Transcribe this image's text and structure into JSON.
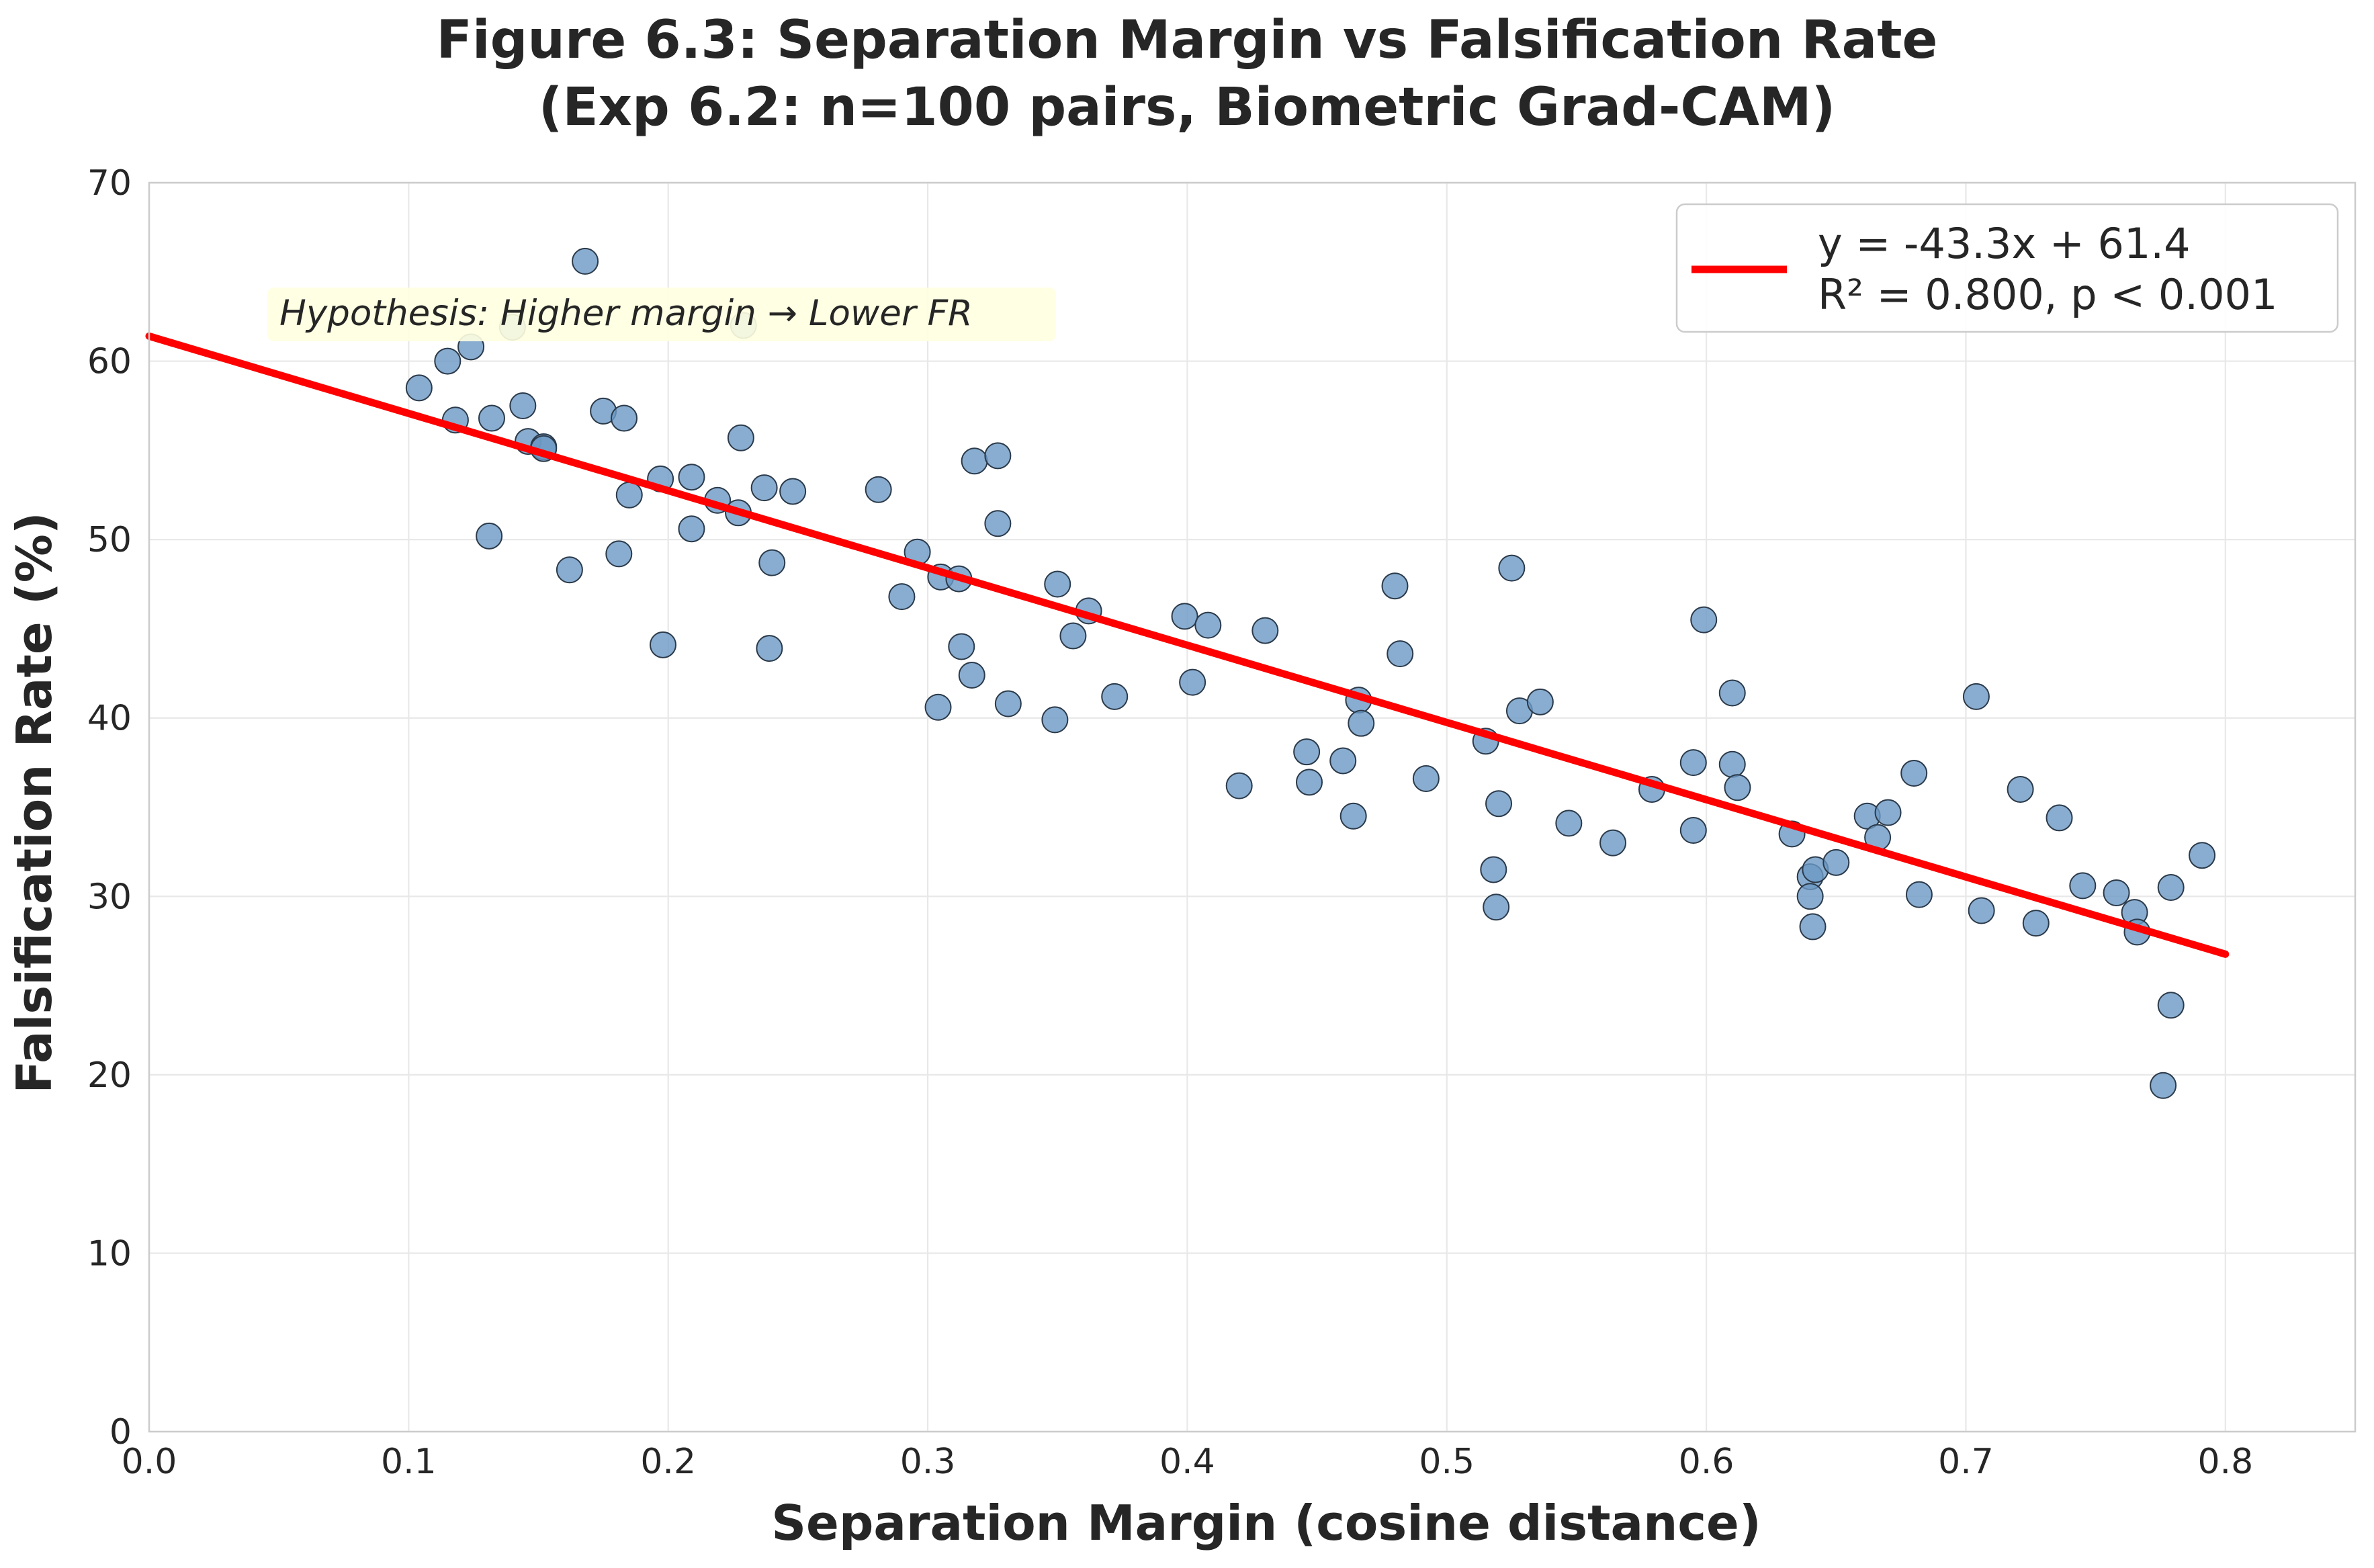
{
  "chart_data": {
    "type": "scatter",
    "title": "Figure 6.3: Separation Margin vs Falsification Rate",
    "subtitle": "(Exp 6.2: n=100 pairs, Biometric Grad-CAM)",
    "xlabel": "Separation Margin (cosine distance)",
    "ylabel": "Falsification Rate (%)",
    "xlim": [
      0.0,
      0.85
    ],
    "ylim": [
      0,
      70
    ],
    "xticks": [
      "0.0",
      "0.1",
      "0.2",
      "0.3",
      "0.4",
      "0.5",
      "0.6",
      "0.7",
      "0.8"
    ],
    "yticks": [
      "0",
      "10",
      "20",
      "30",
      "40",
      "50",
      "60",
      "70"
    ],
    "grid": true,
    "legend_position": "top-right",
    "annotation": "Hypothesis: Higher margin → Lower FR",
    "fit": {
      "slope": -43.3,
      "intercept": 61.4,
      "x_range": [
        0.0,
        0.8
      ],
      "legend_line1": "y = -43.3x + 61.4",
      "legend_line2": "R² = 0.800, p < 0.001",
      "color": "#ff0000"
    },
    "point_color": "#6b98c4",
    "point_edge": "#2b3a4a",
    "points": [
      [
        0.104,
        58.5
      ],
      [
        0.115,
        60.0
      ],
      [
        0.118,
        56.7
      ],
      [
        0.124,
        60.8
      ],
      [
        0.131,
        50.2
      ],
      [
        0.132,
        56.8
      ],
      [
        0.14,
        61.9
      ],
      [
        0.144,
        57.5
      ],
      [
        0.146,
        55.5
      ],
      [
        0.152,
        55.2
      ],
      [
        0.152,
        55.1
      ],
      [
        0.162,
        48.3
      ],
      [
        0.168,
        65.6
      ],
      [
        0.175,
        57.2
      ],
      [
        0.181,
        49.2
      ],
      [
        0.183,
        56.8
      ],
      [
        0.185,
        52.5
      ],
      [
        0.197,
        53.4
      ],
      [
        0.198,
        44.1
      ],
      [
        0.209,
        53.5
      ],
      [
        0.209,
        50.6
      ],
      [
        0.219,
        52.2
      ],
      [
        0.227,
        51.5
      ],
      [
        0.228,
        55.7
      ],
      [
        0.229,
        62.0
      ],
      [
        0.237,
        52.9
      ],
      [
        0.239,
        43.9
      ],
      [
        0.24,
        48.7
      ],
      [
        0.248,
        52.7
      ],
      [
        0.281,
        52.8
      ],
      [
        0.29,
        46.8
      ],
      [
        0.296,
        49.3
      ],
      [
        0.304,
        40.6
      ],
      [
        0.305,
        47.9
      ],
      [
        0.312,
        47.8
      ],
      [
        0.313,
        44.0
      ],
      [
        0.317,
        42.4
      ],
      [
        0.318,
        54.4
      ],
      [
        0.327,
        54.7
      ],
      [
        0.327,
        50.9
      ],
      [
        0.331,
        40.8
      ],
      [
        0.349,
        39.9
      ],
      [
        0.35,
        47.5
      ],
      [
        0.356,
        44.6
      ],
      [
        0.362,
        46.0
      ],
      [
        0.372,
        41.2
      ],
      [
        0.399,
        45.7
      ],
      [
        0.402,
        42.0
      ],
      [
        0.408,
        45.2
      ],
      [
        0.42,
        36.2
      ],
      [
        0.43,
        44.9
      ],
      [
        0.446,
        38.1
      ],
      [
        0.447,
        36.4
      ],
      [
        0.46,
        37.6
      ],
      [
        0.464,
        34.5
      ],
      [
        0.466,
        41.0
      ],
      [
        0.467,
        39.7
      ],
      [
        0.48,
        47.4
      ],
      [
        0.482,
        43.6
      ],
      [
        0.492,
        36.6
      ],
      [
        0.515,
        38.7
      ],
      [
        0.518,
        31.5
      ],
      [
        0.519,
        29.4
      ],
      [
        0.52,
        35.2
      ],
      [
        0.525,
        48.4
      ],
      [
        0.528,
        40.4
      ],
      [
        0.536,
        40.9
      ],
      [
        0.547,
        34.1
      ],
      [
        0.564,
        33.0
      ],
      [
        0.579,
        36.0
      ],
      [
        0.595,
        37.5
      ],
      [
        0.595,
        33.7
      ],
      [
        0.599,
        45.5
      ],
      [
        0.61,
        41.4
      ],
      [
        0.61,
        37.4
      ],
      [
        0.612,
        36.1
      ],
      [
        0.633,
        33.5
      ],
      [
        0.64,
        31.1
      ],
      [
        0.64,
        30.0
      ],
      [
        0.641,
        28.3
      ],
      [
        0.642,
        31.5
      ],
      [
        0.65,
        31.9
      ],
      [
        0.662,
        34.5
      ],
      [
        0.666,
        33.3
      ],
      [
        0.67,
        34.7
      ],
      [
        0.68,
        36.9
      ],
      [
        0.682,
        30.1
      ],
      [
        0.704,
        41.2
      ],
      [
        0.706,
        29.2
      ],
      [
        0.721,
        36.0
      ],
      [
        0.727,
        28.5
      ],
      [
        0.736,
        34.4
      ],
      [
        0.745,
        30.6
      ],
      [
        0.758,
        30.2
      ],
      [
        0.765,
        29.1
      ],
      [
        0.766,
        28.0
      ],
      [
        0.776,
        19.4
      ],
      [
        0.779,
        30.5
      ],
      [
        0.779,
        23.9
      ],
      [
        0.791,
        32.3
      ]
    ]
  }
}
